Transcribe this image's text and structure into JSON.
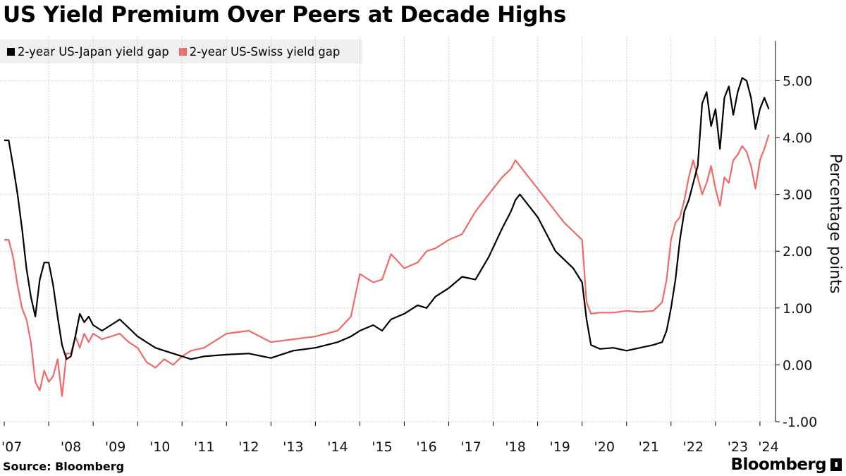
{
  "page": {
    "title": "US Yield Premium Over Peers at Decade Highs",
    "source": "Source: Bloomberg",
    "brand": "Bloomberg"
  },
  "legend": [
    {
      "label": "2-year US-Japan yield gap",
      "color": "#000000"
    },
    {
      "label": "2-year US-Swiss yield gap",
      "color": "#f06a6a"
    }
  ],
  "chart_data": {
    "type": "line",
    "title": "US Yield Premium Over Peers at Decade Highs",
    "xlabel": "",
    "ylabel": "Percentage points",
    "xlim": [
      2007.0,
      2024.35
    ],
    "ylim": [
      -1.0,
      5.7
    ],
    "y_ticks": [
      -1.0,
      0.0,
      1.0,
      2.0,
      3.0,
      4.0,
      5.0
    ],
    "y_tick_labels": [
      "-1.00",
      "0.00",
      "1.00",
      "2.00",
      "3.00",
      "4.00",
      "5.00"
    ],
    "x_ticks": [
      2007,
      2008,
      2009,
      2010,
      2011,
      2012,
      2013,
      2014,
      2015,
      2016,
      2017,
      2018,
      2019,
      2020,
      2021,
      2022,
      2023,
      2024
    ],
    "x_tick_labels": [
      "'07",
      "'08",
      "'09",
      "'10",
      "'11",
      "'12",
      "'13",
      "'14",
      "'15",
      "'16",
      "'17",
      "'18",
      "'19",
      "'20",
      "'21",
      "'22",
      "'23",
      "'24"
    ],
    "grid": true,
    "legend_position": "top-left",
    "y_axis_side": "right",
    "series": [
      {
        "name": "2-year US-Japan yield gap",
        "color": "#000000",
        "x": [
          2007.0,
          2007.1,
          2007.2,
          2007.3,
          2007.4,
          2007.5,
          2007.6,
          2007.7,
          2007.8,
          2007.9,
          2008.0,
          2008.1,
          2008.2,
          2008.3,
          2008.4,
          2008.5,
          2008.6,
          2008.7,
          2008.8,
          2008.9,
          2009.0,
          2009.2,
          2009.4,
          2009.6,
          2009.8,
          2010.0,
          2010.2,
          2010.4,
          2010.6,
          2010.8,
          2011.0,
          2011.2,
          2011.5,
          2012.0,
          2012.5,
          2013.0,
          2013.5,
          2014.0,
          2014.5,
          2014.8,
          2015.0,
          2015.3,
          2015.5,
          2015.7,
          2016.0,
          2016.3,
          2016.5,
          2016.7,
          2017.0,
          2017.3,
          2017.6,
          2017.9,
          2018.2,
          2018.4,
          2018.5,
          2018.6,
          2018.8,
          2019.0,
          2019.2,
          2019.4,
          2019.6,
          2019.8,
          2020.0,
          2020.1,
          2020.2,
          2020.4,
          2020.7,
          2021.0,
          2021.3,
          2021.6,
          2021.8,
          2021.9,
          2022.0,
          2022.1,
          2022.2,
          2022.3,
          2022.4,
          2022.5,
          2022.6,
          2022.7,
          2022.8,
          2022.9,
          2023.0,
          2023.1,
          2023.2,
          2023.3,
          2023.4,
          2023.5,
          2023.6,
          2023.7,
          2023.8,
          2023.9,
          2024.0,
          2024.1,
          2024.2
        ],
        "values": [
          3.95,
          3.95,
          3.5,
          3.0,
          2.4,
          1.7,
          1.2,
          0.85,
          1.5,
          1.8,
          1.8,
          1.4,
          0.85,
          0.35,
          0.1,
          0.15,
          0.5,
          0.9,
          0.75,
          0.85,
          0.7,
          0.6,
          0.7,
          0.8,
          0.65,
          0.5,
          0.4,
          0.3,
          0.25,
          0.2,
          0.15,
          0.1,
          0.15,
          0.18,
          0.2,
          0.12,
          0.25,
          0.3,
          0.4,
          0.5,
          0.6,
          0.7,
          0.6,
          0.8,
          0.9,
          1.05,
          1.0,
          1.2,
          1.35,
          1.55,
          1.5,
          1.9,
          2.4,
          2.7,
          2.9,
          3.0,
          2.8,
          2.6,
          2.3,
          2.0,
          1.85,
          1.7,
          1.45,
          0.8,
          0.35,
          0.28,
          0.3,
          0.25,
          0.3,
          0.35,
          0.4,
          0.6,
          1.0,
          1.5,
          2.2,
          2.7,
          2.9,
          3.2,
          3.5,
          4.6,
          4.8,
          4.2,
          4.5,
          3.8,
          4.7,
          4.9,
          4.4,
          4.8,
          5.05,
          5.0,
          4.7,
          4.15,
          4.5,
          4.7,
          4.5
        ]
      },
      {
        "name": "2-year US-Swiss yield gap",
        "color": "#f06a6a",
        "x": [
          2007.0,
          2007.1,
          2007.2,
          2007.3,
          2007.4,
          2007.5,
          2007.6,
          2007.7,
          2007.8,
          2007.9,
          2008.0,
          2008.1,
          2008.2,
          2008.3,
          2008.4,
          2008.5,
          2008.6,
          2008.7,
          2008.8,
          2008.9,
          2009.0,
          2009.2,
          2009.4,
          2009.6,
          2009.8,
          2010.0,
          2010.2,
          2010.4,
          2010.6,
          2010.8,
          2011.0,
          2011.2,
          2011.5,
          2012.0,
          2012.5,
          2013.0,
          2013.5,
          2014.0,
          2014.5,
          2014.8,
          2015.0,
          2015.3,
          2015.5,
          2015.7,
          2016.0,
          2016.3,
          2016.5,
          2016.7,
          2017.0,
          2017.3,
          2017.6,
          2017.9,
          2018.2,
          2018.4,
          2018.5,
          2018.6,
          2018.8,
          2019.0,
          2019.2,
          2019.4,
          2019.6,
          2019.8,
          2020.0,
          2020.1,
          2020.2,
          2020.4,
          2020.7,
          2021.0,
          2021.3,
          2021.6,
          2021.8,
          2021.9,
          2022.0,
          2022.1,
          2022.2,
          2022.3,
          2022.4,
          2022.5,
          2022.6,
          2022.7,
          2022.8,
          2022.9,
          2023.0,
          2023.1,
          2023.2,
          2023.3,
          2023.4,
          2023.5,
          2023.6,
          2023.7,
          2023.8,
          2023.9,
          2024.0,
          2024.1,
          2024.2
        ],
        "values": [
          2.2,
          2.2,
          1.9,
          1.4,
          1.0,
          0.8,
          0.4,
          -0.3,
          -0.45,
          -0.1,
          -0.3,
          -0.2,
          0.1,
          -0.55,
          0.2,
          0.2,
          0.5,
          0.3,
          0.55,
          0.4,
          0.55,
          0.45,
          0.5,
          0.55,
          0.4,
          0.3,
          0.05,
          -0.05,
          0.1,
          0.0,
          0.15,
          0.25,
          0.3,
          0.55,
          0.6,
          0.4,
          0.45,
          0.5,
          0.6,
          0.85,
          1.6,
          1.45,
          1.5,
          1.95,
          1.7,
          1.8,
          2.0,
          2.05,
          2.2,
          2.3,
          2.7,
          3.0,
          3.3,
          3.45,
          3.6,
          3.5,
          3.3,
          3.1,
          2.9,
          2.7,
          2.5,
          2.35,
          2.2,
          1.1,
          0.9,
          0.92,
          0.92,
          0.95,
          0.93,
          0.95,
          1.1,
          1.5,
          2.2,
          2.5,
          2.6,
          2.9,
          3.3,
          3.6,
          3.3,
          3.0,
          3.2,
          3.5,
          3.1,
          2.8,
          3.3,
          3.2,
          3.6,
          3.7,
          3.85,
          3.75,
          3.5,
          3.1,
          3.6,
          3.8,
          4.05
        ]
      }
    ]
  }
}
